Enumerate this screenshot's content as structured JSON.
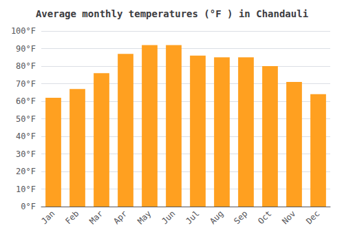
{
  "chart_data": {
    "type": "bar",
    "title": "Average monthly temperatures (°F ) in Chandauli",
    "categories": [
      "Jan",
      "Feb",
      "Mar",
      "Apr",
      "May",
      "Jun",
      "Jul",
      "Aug",
      "Sep",
      "Oct",
      "Nov",
      "Dec"
    ],
    "values": [
      62,
      67,
      76,
      87,
      92,
      92,
      86,
      85,
      85,
      80,
      71,
      64
    ],
    "color": "#FFA020",
    "ylim": [
      0,
      100
    ],
    "yticks": [
      {
        "value": 0,
        "label": "0°F"
      },
      {
        "value": 10,
        "label": "10°F"
      },
      {
        "value": 20,
        "label": "20°F"
      },
      {
        "value": 30,
        "label": "30°F"
      },
      {
        "value": 40,
        "label": "40°F"
      },
      {
        "value": 50,
        "label": "50°F"
      },
      {
        "value": 60,
        "label": "60°F"
      },
      {
        "value": 70,
        "label": "70°F"
      },
      {
        "value": 80,
        "label": "80°F"
      },
      {
        "value": 90,
        "label": "90°F"
      },
      {
        "value": 100,
        "label": "100°F"
      }
    ],
    "grid": true
  }
}
